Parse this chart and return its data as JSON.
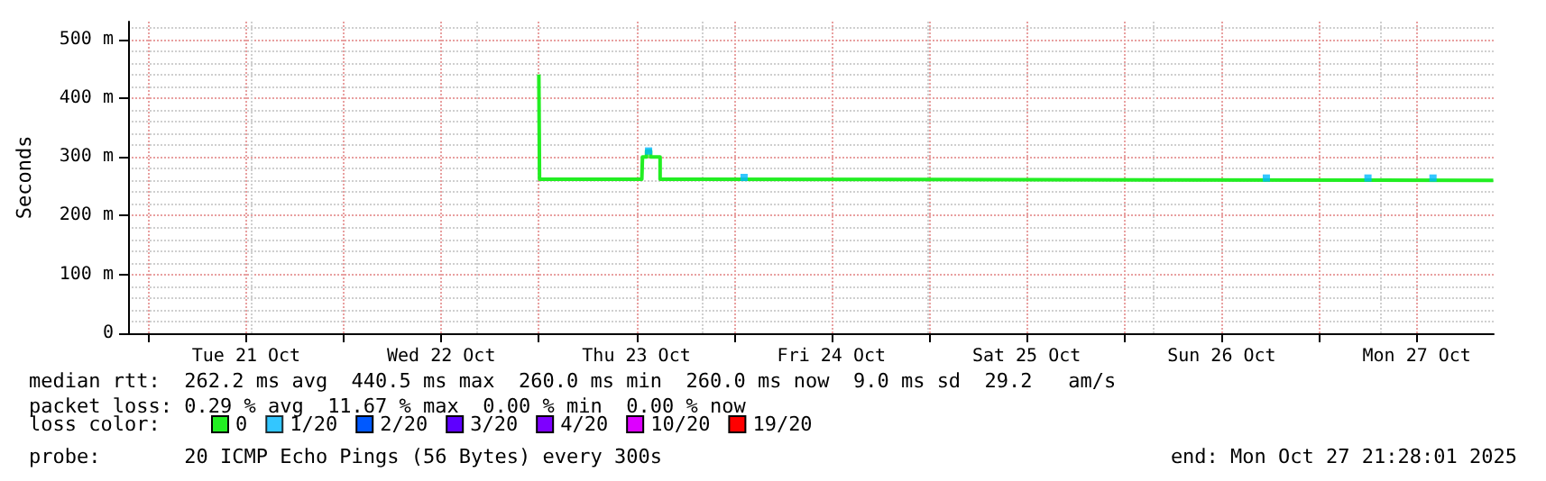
{
  "chart_data": {
    "type": "step",
    "ylabel": "Seconds",
    "xlim": [
      "2025-10-20T21:28",
      "2025-10-27T21:28"
    ],
    "xticks": [
      {
        "value": "2025-10-21T00:00",
        "label": null
      },
      {
        "value": "2025-10-21T12:00",
        "label": "Tue 21 Oct"
      },
      {
        "value": "2025-10-22T00:00",
        "label": null
      },
      {
        "value": "2025-10-22T12:00",
        "label": "Wed 22 Oct"
      },
      {
        "value": "2025-10-23T00:00",
        "label": null
      },
      {
        "value": "2025-10-23T12:00",
        "label": "Thu 23 Oct"
      },
      {
        "value": "2025-10-24T00:00",
        "label": null
      },
      {
        "value": "2025-10-24T12:00",
        "label": "Fri 24 Oct"
      },
      {
        "value": "2025-10-25T00:00",
        "label": null
      },
      {
        "value": "2025-10-25T12:00",
        "label": "Sat 25 Oct"
      },
      {
        "value": "2025-10-26T00:00",
        "label": null
      },
      {
        "value": "2025-10-26T12:00",
        "label": "Sun 26 Oct"
      },
      {
        "value": "2025-10-27T00:00",
        "label": null
      },
      {
        "value": "2025-10-27T12:00",
        "label": "Mon 27 Oct"
      }
    ],
    "ylim": [
      0,
      530
    ],
    "yticks": [
      0,
      {
        "value": 100,
        "label": "100 m"
      },
      {
        "value": 200,
        "label": "200 m"
      },
      {
        "value": 300,
        "label": "300 m"
      },
      {
        "value": 400,
        "label": "400 m"
      },
      {
        "value": 500,
        "label": "500 m"
      }
    ],
    "grid": true,
    "marker": "none",
    "legend": "bottom",
    "legend_title": "loss color:",
    "series": [
      {
        "name": "0",
        "color": "#22ee22",
        "x": [
          "2025-10-23T00:00",
          "2025-10-23T00:05",
          "2025-10-23T12:40",
          "2025-10-23T12:45",
          "2025-10-23T13:15",
          "2025-10-23T13:45",
          "2025-10-23T14:55",
          "2025-10-23T16:55",
          "2025-10-27T21:25"
        ],
        "values": [
          440,
          262,
          262,
          300,
          310,
          300,
          262,
          260,
          260
        ]
      },
      {
        "name": "1/20",
        "color": "#00b8ff",
        "type": "scatter",
        "marker": "square",
        "x": [
          "2025-10-23T13:30",
          "2025-10-24T01:15",
          "2025-10-26T17:30",
          "2025-10-27T06:00",
          "2025-10-27T14:00"
        ],
        "values": [
          310,
          265,
          264,
          264,
          264
        ]
      },
      {
        "name": "2/20",
        "color": "#0059ff"
      },
      {
        "name": "3/20",
        "color": "#5e00ff"
      },
      {
        "name": "4/20",
        "color": "#7e00ff"
      },
      {
        "name": "10/20",
        "color": "#dd00ff"
      },
      {
        "name": "19/20",
        "color": "#ff0000"
      }
    ],
    "annotations": [
      "median rtt:  262.2 ms avg  440.5 ms max  260.0 ms min  260.0 ms now  9.0 ms sd  29.2   am/s",
      "packet loss: 0.29 % avg  11.67 % max  0.00 % min  0.00 % now",
      "probe:       20 ICMP Echo Pings (56 Bytes) every 300s",
      "end: Mon Oct 27 21:28:01 2025"
    ]
  }
}
